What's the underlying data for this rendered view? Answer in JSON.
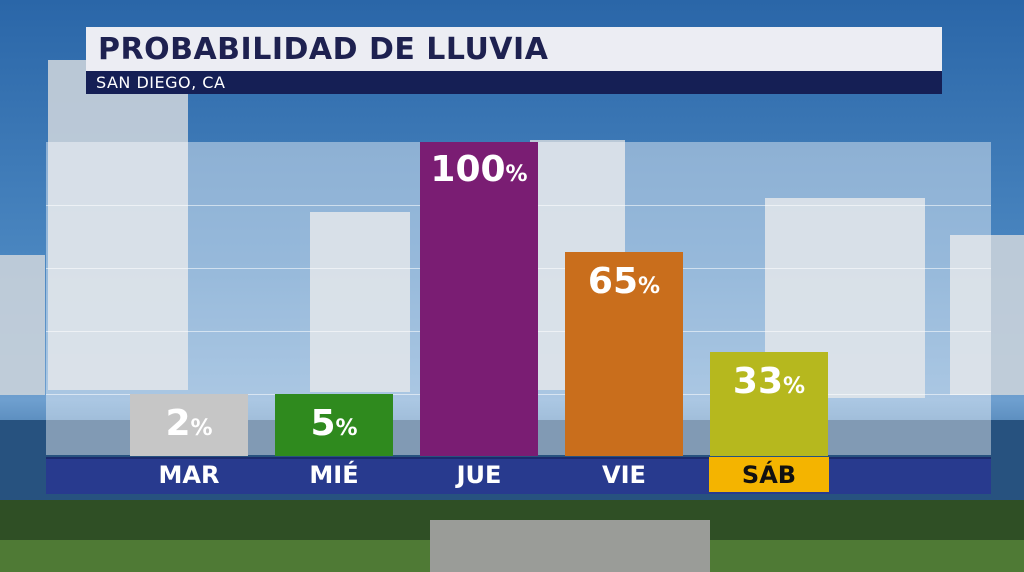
{
  "header": {
    "title": "PROBABILIDAD DE LLUVIA",
    "subtitle": "SAN DIEGO, CA"
  },
  "chart_data": {
    "type": "bar",
    "title": "PROBABILIDAD DE LLUVIA",
    "subtitle": "SAN DIEGO, CA",
    "categories": [
      "MAR",
      "MIÉ",
      "JUE",
      "VIE",
      "SÁB"
    ],
    "values": [
      2,
      5,
      100,
      65,
      33
    ],
    "labels": [
      "2",
      "5",
      "100",
      "65",
      "33"
    ],
    "unit": "%",
    "ylim": [
      0,
      100
    ],
    "grid": true,
    "legend": "none",
    "highlighted_category": "SÁB",
    "colors": [
      "#c6c6c6",
      "#2f8a1e",
      "#7a1d73",
      "#c96e1c",
      "#b6b81e"
    ],
    "highlight_color": "#f4b400",
    "axis_color": "#283a8e"
  }
}
